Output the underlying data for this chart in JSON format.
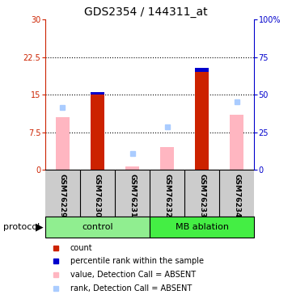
{
  "title": "GDS2354 / 144311_at",
  "samples": [
    "GSM76229",
    "GSM76230",
    "GSM76231",
    "GSM76232",
    "GSM76233",
    "GSM76234"
  ],
  "red_bars": [
    0,
    15.1,
    0,
    0,
    19.5,
    0
  ],
  "blue_bars": [
    0,
    0.4,
    0,
    0,
    0.8,
    0
  ],
  "pink_bars": [
    10.5,
    0,
    0.6,
    4.5,
    0,
    11.0
  ],
  "lightblue_dots": [
    12.5,
    0,
    3.2,
    8.5,
    0,
    13.5
  ],
  "ylim_left": [
    0,
    30
  ],
  "ylim_right": [
    0,
    100
  ],
  "yticks_left": [
    0,
    7.5,
    15,
    22.5,
    30
  ],
  "yticks_right": [
    0,
    25,
    50,
    75,
    100
  ],
  "ytick_labels_left": [
    "0",
    "7.5",
    "15",
    "22.5",
    "30"
  ],
  "ytick_labels_right": [
    "0",
    "25",
    "50",
    "75",
    "100%"
  ],
  "dotted_lines": [
    7.5,
    15,
    22.5
  ],
  "left_axis_color": "#CC2200",
  "right_axis_color": "#0000CC",
  "control_color": "#90EE90",
  "mb_color": "#44EE44",
  "sample_bg": "#CCCCCC",
  "legend_labels": [
    "count",
    "percentile rank within the sample",
    "value, Detection Call = ABSENT",
    "rank, Detection Call = ABSENT"
  ],
  "legend_colors": [
    "#CC2200",
    "#0000CC",
    "#FFB6C1",
    "#AACCFF"
  ]
}
